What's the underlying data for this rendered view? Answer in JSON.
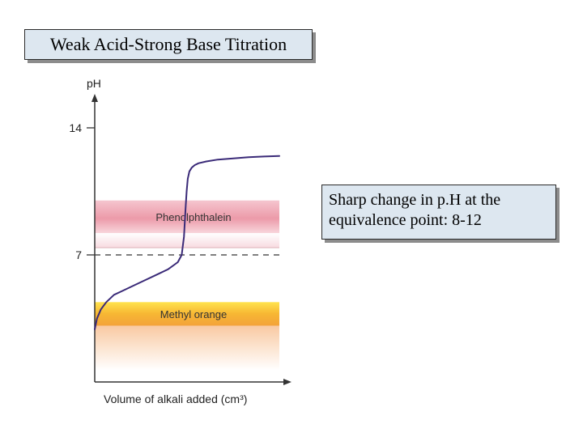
{
  "title": "Weak Acid-Strong Base Titration",
  "note": {
    "line1": "Sharp change in p.H at the",
    "line2": "equivalence point: 8-12"
  },
  "chart_data": {
    "type": "line",
    "title": "",
    "xlabel": "Volume of alkali added (cm³)",
    "ylabel": "pH",
    "ylim": [
      0,
      15.5
    ],
    "yticks": [
      {
        "value": 14,
        "label": "14"
      },
      {
        "value": 7,
        "label": "7"
      }
    ],
    "reference_line": {
      "value": 7,
      "style": "dashed"
    },
    "bands": [
      {
        "name": "Phenolphthalein",
        "from": 8.2,
        "to": 10.0,
        "color": "#e8909e"
      },
      {
        "name": "Methyl orange",
        "from": 3.1,
        "to": 4.4,
        "color": "#f7b733"
      }
    ],
    "series": [
      {
        "x": [
          0,
          0.3,
          0.8,
          1.5,
          2.5,
          3.5,
          5,
          6.5,
          8,
          9.5,
          10.8,
          11.3,
          11.6,
          11.8,
          11.95,
          12.1,
          12.3,
          12.6,
          13,
          13.5,
          14.5,
          16,
          18,
          20,
          22,
          24
        ],
        "y": [
          2.9,
          3.5,
          4.0,
          4.4,
          4.8,
          5.0,
          5.3,
          5.6,
          5.9,
          6.2,
          6.6,
          7.0,
          8.0,
          9.5,
          10.5,
          11.2,
          11.6,
          11.8,
          11.95,
          12.05,
          12.15,
          12.25,
          12.32,
          12.38,
          12.42,
          12.45
        ]
      }
    ],
    "xlim": [
      0,
      24
    ],
    "line_color": "#3a2a78"
  }
}
